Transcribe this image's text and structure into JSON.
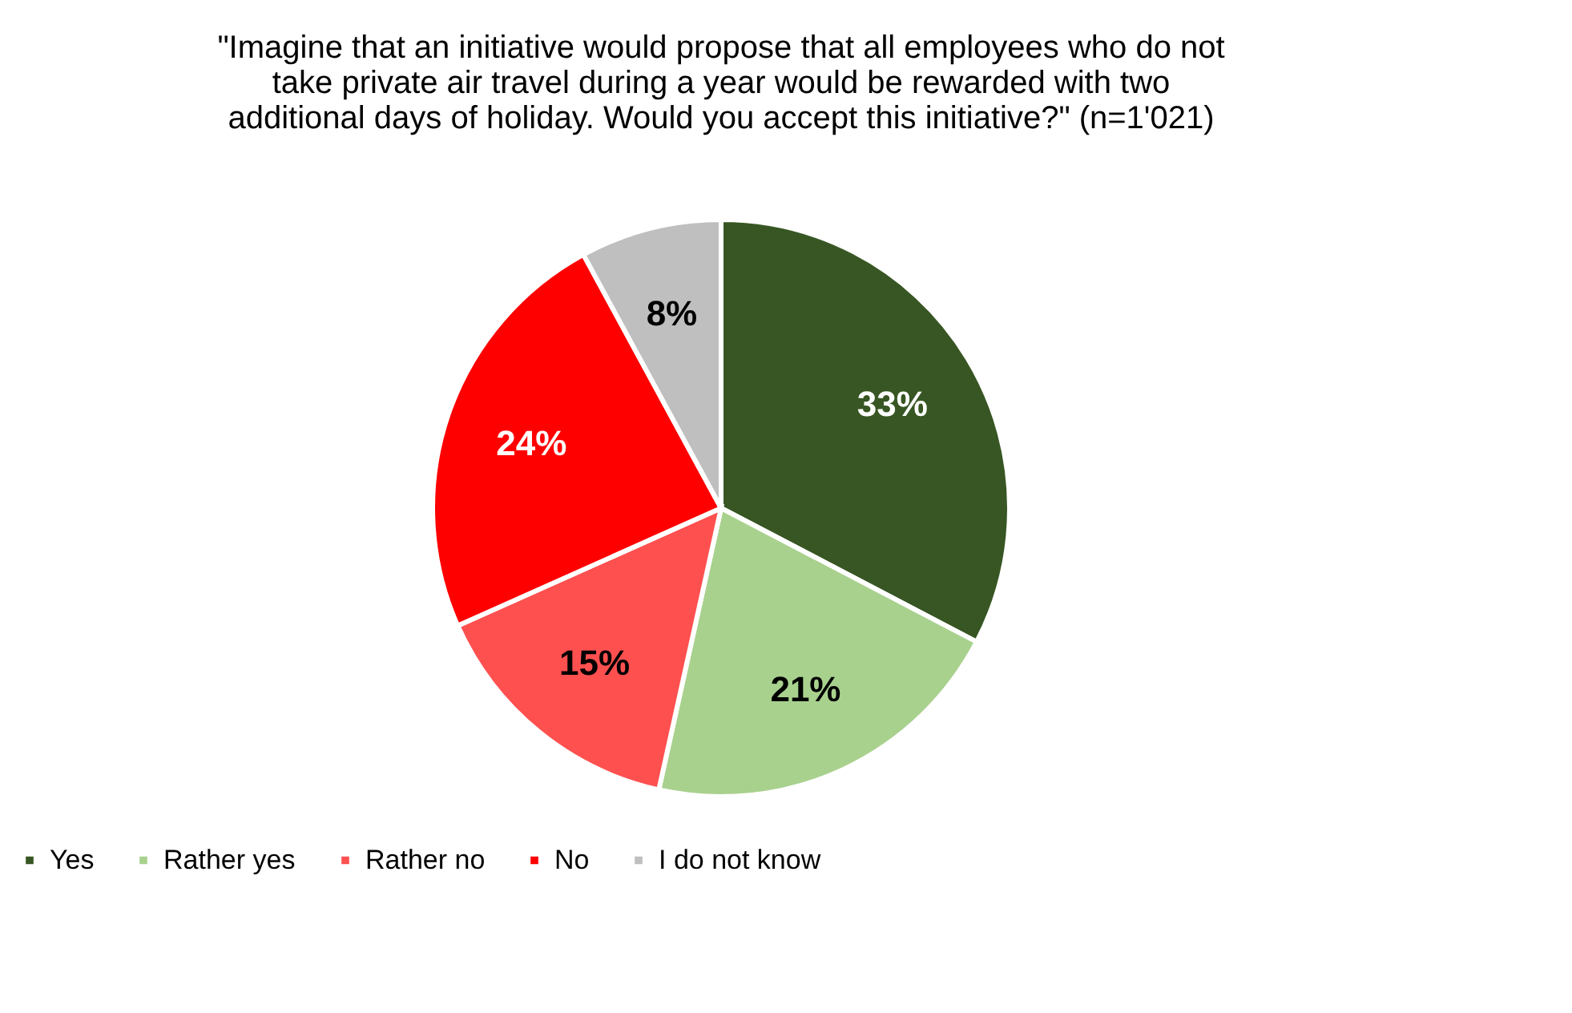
{
  "chart_data": {
    "type": "pie",
    "title": "\"Imagine that an initiative would propose that all employees who do not take private air travel during a year would be rewarded with two additional days of holiday. Would you accept this initiative?\" (n=1'021)",
    "categories": [
      "Yes",
      "Rather yes",
      "Rather no",
      "No",
      "I do not know"
    ],
    "values": [
      33,
      21,
      15,
      24,
      8
    ],
    "colors": [
      "#375623",
      "#a9d18e",
      "#ff5050",
      "#ff0000",
      "#bfbfbf"
    ],
    "value_labels": [
      "33%",
      "21%",
      "15%",
      "24%",
      "8%"
    ],
    "legend": "bottom"
  }
}
